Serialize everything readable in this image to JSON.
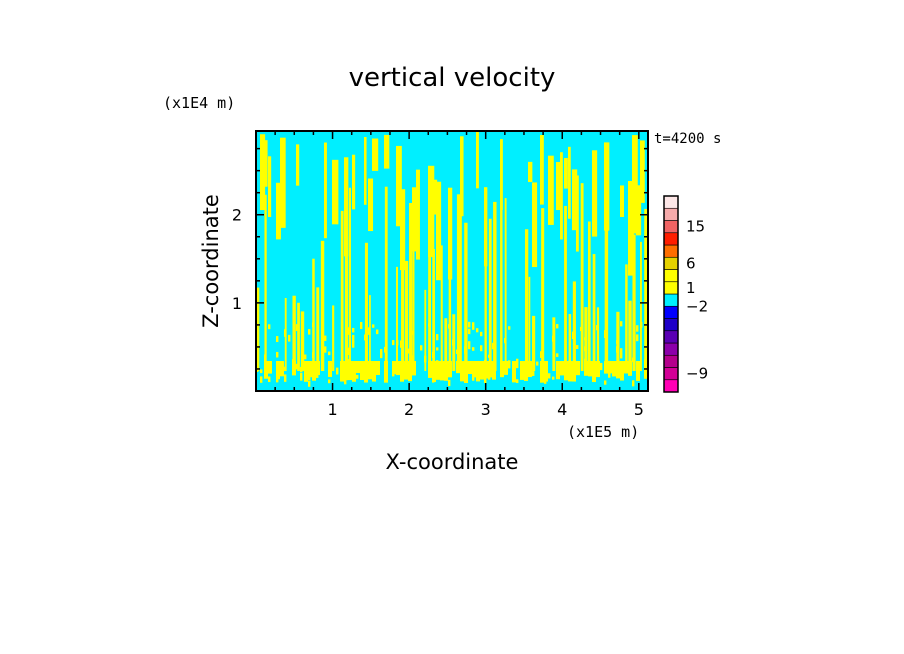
{
  "chart_data": {
    "type": "heatmap",
    "title": "vertical velocity",
    "xlabel": "X-coordinate",
    "ylabel": "Z-coordinate",
    "x_scale_label": "(x1E5 m)",
    "y_scale_label": "(x1E4 m)",
    "time_label": "t=4200 s",
    "xlim": [
      0,
      5.12
    ],
    "ylim": [
      0,
      2.95
    ],
    "xticks": [
      {
        "value": 1,
        "label": "1"
      },
      {
        "value": 2,
        "label": "2"
      },
      {
        "value": 3,
        "label": "3"
      },
      {
        "value": 4,
        "label": "4"
      },
      {
        "value": 5,
        "label": "5"
      }
    ],
    "yticks": [
      {
        "value": 1,
        "label": "1"
      },
      {
        "value": 2,
        "label": "2"
      }
    ],
    "field_colors": {
      "negative": "#00efff",
      "positive": "#ffff00"
    },
    "colorbar": {
      "segments": [
        {
          "color": "#ff00b4"
        },
        {
          "color": "#d20096"
        },
        {
          "color": "#b4008c"
        },
        {
          "color": "#8c00aa"
        },
        {
          "color": "#5a00b4"
        },
        {
          "color": "#1e00c8"
        },
        {
          "color": "#0000ff"
        },
        {
          "color": "#00efff"
        },
        {
          "color": "#ffff00"
        },
        {
          "color": "#ffff00"
        },
        {
          "color": "#e6d200"
        },
        {
          "color": "#ff6e00"
        },
        {
          "color": "#ff1e00"
        },
        {
          "color": "#f06464"
        },
        {
          "color": "#f5aaaa"
        },
        {
          "color": "#fde7e7"
        }
      ],
      "labels": [
        {
          "value": 15,
          "text": "15",
          "segment": 13.5
        },
        {
          "value": 6,
          "text": "6",
          "segment": 10.5
        },
        {
          "value": 1,
          "text": "1",
          "segment": 8.5
        },
        {
          "value": -2,
          "text": "−2",
          "segment": 7
        },
        {
          "value": -9,
          "text": "−9",
          "segment": 1.5
        }
      ]
    }
  }
}
